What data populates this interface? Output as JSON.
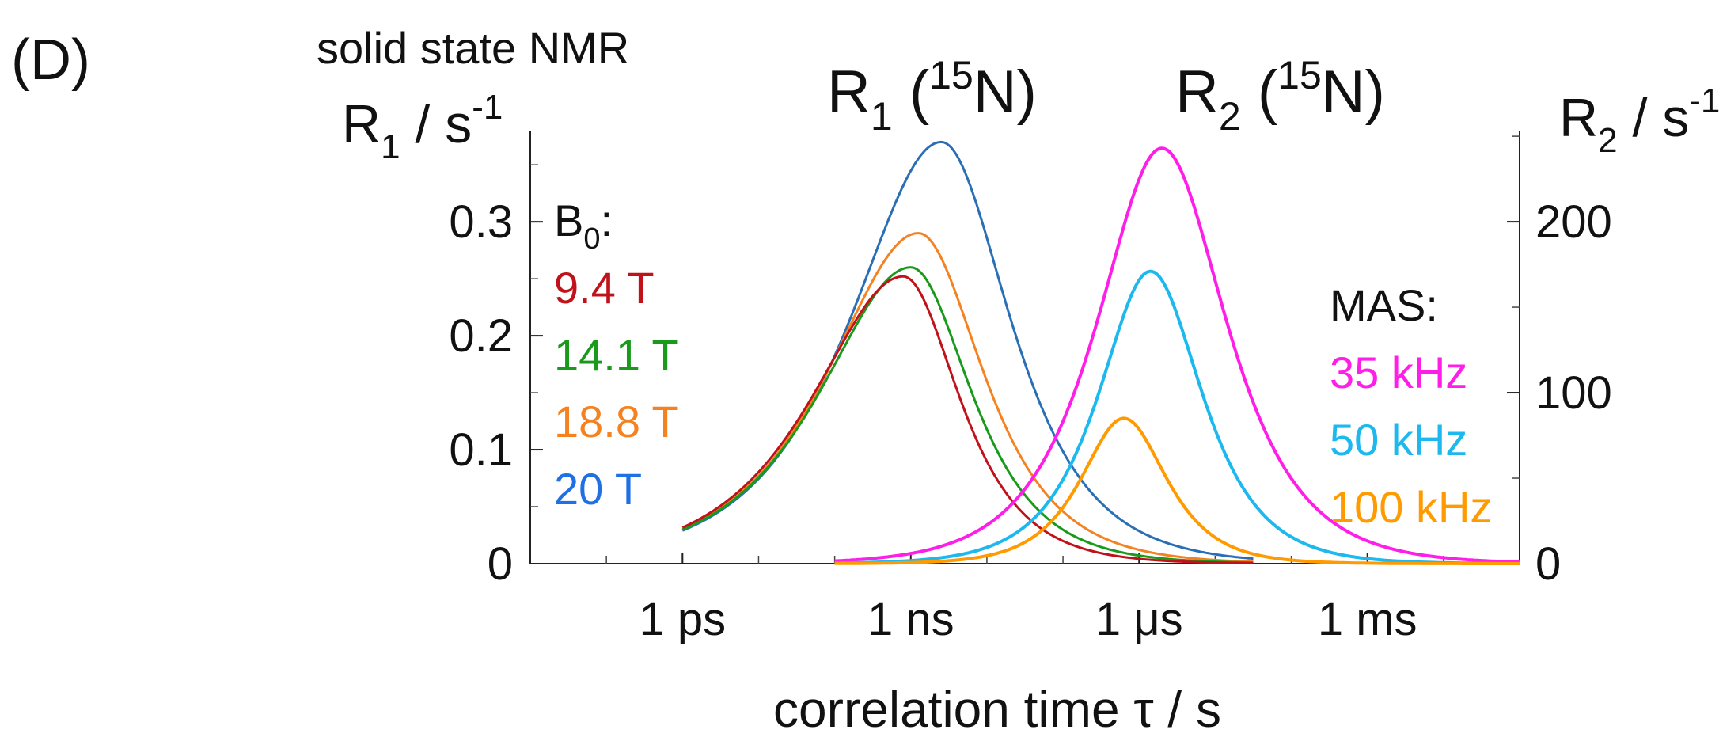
{
  "panel_label": "(D)",
  "subtitle": "solid state NMR",
  "chart_data": {
    "type": "line",
    "x_scale": "log",
    "xlabel": "correlation time τ / s",
    "x_ticks": [
      {
        "label": "1 ps",
        "value": 1e-12
      },
      {
        "label": "1 ns",
        "value": 1e-09
      },
      {
        "label": "1 μs",
        "value": 1e-06
      },
      {
        "label": "1 ms",
        "value": 0.001
      }
    ],
    "xlim": [
      1e-14,
      0.1
    ],
    "left_axis": {
      "label_main": "R",
      "label_sub": "1",
      "label_rest": " / s",
      "label_sup": "-1",
      "ylim": [
        0,
        0.38
      ],
      "ticks": [
        {
          "label": "0",
          "value": 0
        },
        {
          "label": "0.1",
          "value": 0.1
        },
        {
          "label": "0.2",
          "value": 0.2
        },
        {
          "label": "0.3",
          "value": 0.3
        }
      ]
    },
    "right_axis": {
      "label_main": "R",
      "label_sub": "2",
      "label_rest": " / s",
      "label_sup": "-1",
      "ylim": [
        0,
        253.3
      ],
      "ticks": [
        {
          "label": "0",
          "value": 0
        },
        {
          "label": "100",
          "value": 100
        },
        {
          "label": "200",
          "value": 200
        }
      ]
    },
    "group_titles": [
      {
        "main": "R",
        "sub": "1",
        "open": " (",
        "sup": "15",
        "close": "N)"
      },
      {
        "main": "R",
        "sub": "2",
        "open": " (",
        "sup": "15",
        "close": "N)"
      }
    ],
    "legend_r1": {
      "title_main": "B",
      "title_sub": "0",
      "title_tail": ":",
      "entries": [
        {
          "label": "9.4 T",
          "color": "#c0121b"
        },
        {
          "label": "14.1 T",
          "color": "#1a9a1a"
        },
        {
          "label": "18.8 T",
          "color": "#f58220"
        },
        {
          "label": "20 T",
          "color": "#1f6fe5"
        }
      ]
    },
    "legend_r2": {
      "title": "MAS:",
      "entries": [
        {
          "label": "35 kHz",
          "color": "#ff1ee8"
        },
        {
          "label": "50 kHz",
          "color": "#1cb8ee"
        },
        {
          "label": "100 kHz",
          "color": "#ff9b00"
        }
      ]
    },
    "series": [
      {
        "axis": "left",
        "color": "#2a6fb5",
        "curve": "asym",
        "peak_log10_tau": -8.6,
        "peak": 0.37,
        "width_left": 1.05,
        "width_right": 0.8,
        "range_log10_tau": [
          -12.0,
          -4.5
        ]
      },
      {
        "axis": "left",
        "color": "#f58220",
        "curve": "asym",
        "peak_log10_tau": -8.9,
        "peak": 0.29,
        "width_left": 1.05,
        "width_right": 0.75,
        "range_log10_tau": [
          -12.0,
          -4.5
        ]
      },
      {
        "axis": "left",
        "color": "#1a9a1a",
        "curve": "asym",
        "peak_log10_tau": -9.0,
        "peak": 0.26,
        "width_left": 1.05,
        "width_right": 0.7,
        "range_log10_tau": [
          -12.0,
          -4.5
        ]
      },
      {
        "axis": "left",
        "color": "#c0121b",
        "curve": "asym",
        "peak_log10_tau": -9.1,
        "peak": 0.252,
        "width_left": 1.05,
        "width_right": 0.65,
        "range_log10_tau": [
          -12.0,
          -4.5
        ]
      },
      {
        "axis": "right",
        "color": "#ff1ee8",
        "curve": "sym",
        "peak_log10_tau": -5.7,
        "peak": 243,
        "width": 0.75,
        "range_log10_tau": [
          -10.0,
          -1.0
        ]
      },
      {
        "axis": "right",
        "color": "#1cb8ee",
        "curve": "sym",
        "peak_log10_tau": -5.85,
        "peak": 171,
        "width": 0.6,
        "range_log10_tau": [
          -10.0,
          -1.0
        ]
      },
      {
        "axis": "right",
        "color": "#ff9b00",
        "curve": "sym",
        "peak_log10_tau": -6.2,
        "peak": 85,
        "width": 0.5,
        "range_log10_tau": [
          -10.0,
          -1.0
        ]
      }
    ]
  }
}
